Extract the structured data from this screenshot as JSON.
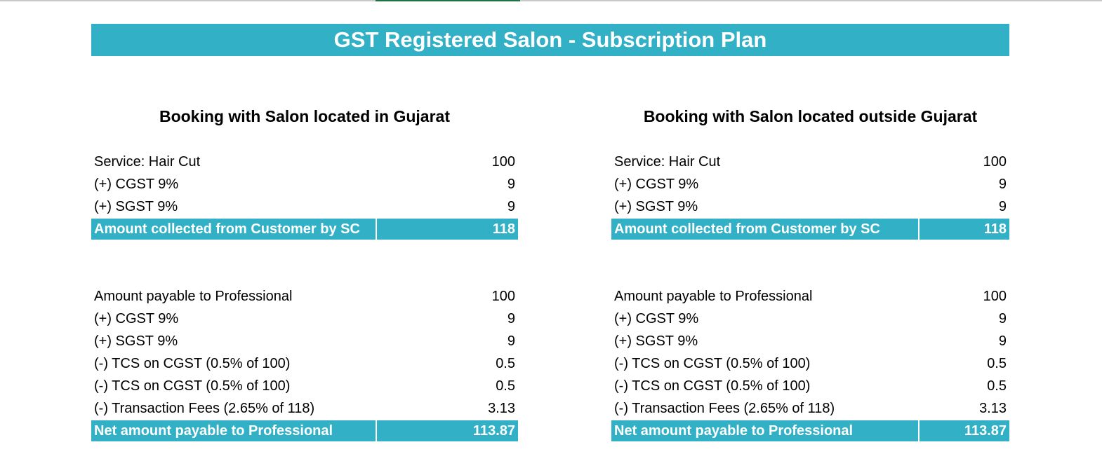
{
  "title": "GST Registered Salon - Subscription Plan",
  "sections": [
    {
      "heading": "Booking with Salon located in Gujarat",
      "block1": [
        {
          "label": "Service: Hair Cut",
          "value": "100"
        },
        {
          "label": "(+) CGST 9%",
          "value": "9"
        },
        {
          "label": "(+) SGST 9%",
          "value": "9"
        }
      ],
      "total1": {
        "label": "Amount collected from Customer by SC",
        "value": "118"
      },
      "block2": [
        {
          "label": "Amount payable to Professional",
          "value": "100"
        },
        {
          "label": "(+) CGST 9%",
          "value": "9"
        },
        {
          "label": "(+) SGST 9%",
          "value": "9"
        },
        {
          "label": "(-) TCS on CGST (0.5% of 100)",
          "value": "0.5"
        },
        {
          "label": "(-) TCS on CGST (0.5% of 100)",
          "value": "0.5"
        },
        {
          "label": "(-) Transaction Fees (2.65% of 118)",
          "value": "3.13"
        }
      ],
      "total2": {
        "label": "Net amount payable to Professional",
        "value": "113.87"
      }
    },
    {
      "heading": "Booking with Salon located outside Gujarat",
      "block1": [
        {
          "label": "Service: Hair Cut",
          "value": "100"
        },
        {
          "label": "(+) CGST 9%",
          "value": "9"
        },
        {
          "label": "(+) SGST 9%",
          "value": "9"
        }
      ],
      "total1": {
        "label": "Amount collected from Customer by SC",
        "value": "118"
      },
      "block2": [
        {
          "label": "Amount payable to Professional",
          "value": "100"
        },
        {
          "label": "(+) CGST 9%",
          "value": "9"
        },
        {
          "label": "(+) SGST 9%",
          "value": "9"
        },
        {
          "label": "(-) TCS on CGST (0.5% of 100)",
          "value": "0.5"
        },
        {
          "label": "(-) TCS on CGST (0.5% of 100)",
          "value": "0.5"
        },
        {
          "label": "(-) Transaction Fees (2.65% of 118)",
          "value": "3.13"
        }
      ],
      "total2": {
        "label": "Net amount payable to Professional",
        "value": "113.87"
      }
    }
  ],
  "colors": {
    "accent": "#31b0c6",
    "accent_text": "#ffffff",
    "text": "#000000"
  }
}
